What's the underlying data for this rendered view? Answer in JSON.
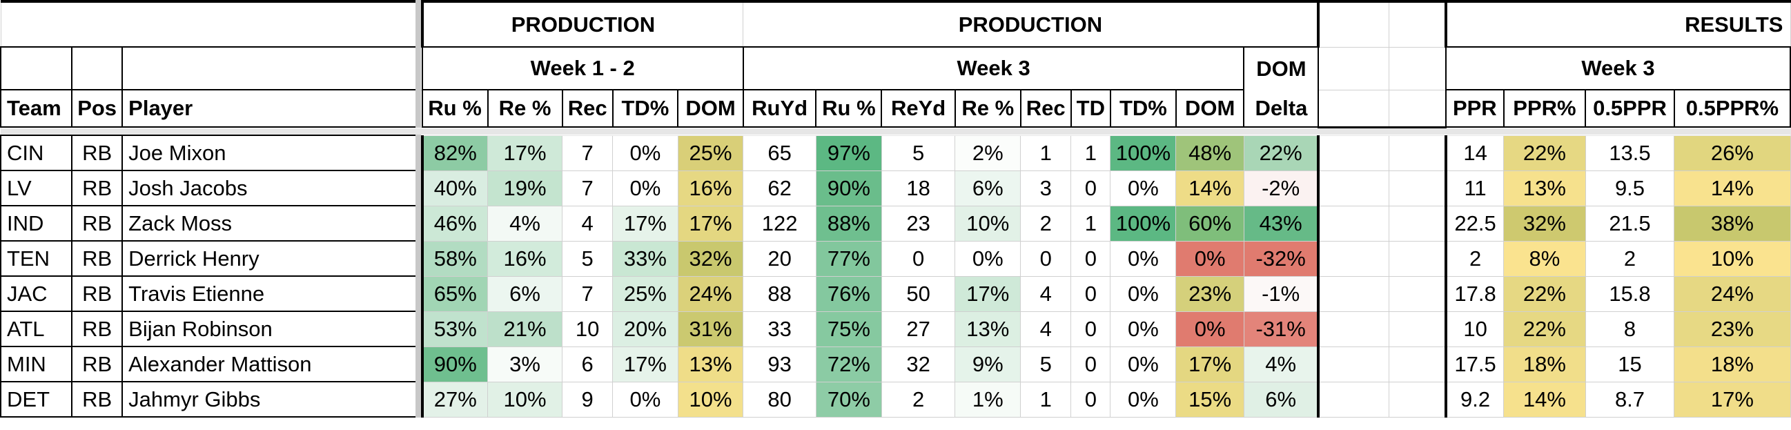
{
  "headers": {
    "production1": "PRODUCTION",
    "production2": "PRODUCTION",
    "results": "RESULTS",
    "week12": "Week 1 - 2",
    "week3a": "Week 3",
    "dom": "DOM",
    "week3b": "Week 3"
  },
  "columns": {
    "team": "Team",
    "pos": "Pos",
    "player": "Player",
    "ru_pct_w12": "Ru %",
    "re_pct_w12": "Re %",
    "rec_w12": "Rec",
    "td_pct_w12": "TD%",
    "dom_w12": "DOM",
    "ruyd": "RuYd",
    "ru_pct_w3": "Ru %",
    "reyd": "ReYd",
    "re_pct_w3": "Re %",
    "rec_w3": "Rec",
    "td": "TD",
    "td_pct_w3": "TD%",
    "dom_w3": "DOM",
    "delta": "Delta",
    "ppr": "PPR",
    "ppr_pct": "PPR%",
    "half_ppr": "0.5PPR",
    "half_ppr_pct": "0.5PPR%"
  },
  "rows": [
    {
      "team": "CIN",
      "pos": "RB",
      "player": "Joe Mixon",
      "ru12": "82%",
      "re12": "17%",
      "rec12": "7",
      "td12": "0%",
      "dom12": "25%",
      "ruyd": "65",
      "ru3": "97%",
      "reyd": "5",
      "re3": "2%",
      "rec3": "1",
      "td": "1",
      "td3": "100%",
      "dom3": "48%",
      "delta": "22%",
      "ppr": "14",
      "pprpct": "22%",
      "hppr": "13.5",
      "hpprpct": "26%"
    },
    {
      "team": "LV",
      "pos": "RB",
      "player": "Josh Jacobs",
      "ru12": "40%",
      "re12": "19%",
      "rec12": "7",
      "td12": "0%",
      "dom12": "16%",
      "ruyd": "62",
      "ru3": "90%",
      "reyd": "18",
      "re3": "6%",
      "rec3": "3",
      "td": "0",
      "td3": "0%",
      "dom3": "14%",
      "delta": "-2%",
      "ppr": "11",
      "pprpct": "13%",
      "hppr": "9.5",
      "hpprpct": "14%"
    },
    {
      "team": "IND",
      "pos": "RB",
      "player": "Zack Moss",
      "ru12": "46%",
      "re12": "4%",
      "rec12": "4",
      "td12": "17%",
      "dom12": "17%",
      "ruyd": "122",
      "ru3": "88%",
      "reyd": "23",
      "re3": "10%",
      "rec3": "2",
      "td": "1",
      "td3": "100%",
      "dom3": "60%",
      "delta": "43%",
      "ppr": "22.5",
      "pprpct": "32%",
      "hppr": "21.5",
      "hpprpct": "38%"
    },
    {
      "team": "TEN",
      "pos": "RB",
      "player": "Derrick Henry",
      "ru12": "58%",
      "re12": "16%",
      "rec12": "5",
      "td12": "33%",
      "dom12": "32%",
      "ruyd": "20",
      "ru3": "77%",
      "reyd": "0",
      "re3": "0%",
      "rec3": "0",
      "td": "0",
      "td3": "0%",
      "dom3": "0%",
      "delta": "-32%",
      "ppr": "2",
      "pprpct": "8%",
      "hppr": "2",
      "hpprpct": "10%"
    },
    {
      "team": "JAC",
      "pos": "RB",
      "player": "Travis Etienne",
      "ru12": "65%",
      "re12": "6%",
      "rec12": "7",
      "td12": "25%",
      "dom12": "24%",
      "ruyd": "88",
      "ru3": "76%",
      "reyd": "50",
      "re3": "17%",
      "rec3": "4",
      "td": "0",
      "td3": "0%",
      "dom3": "23%",
      "delta": "-1%",
      "ppr": "17.8",
      "pprpct": "22%",
      "hppr": "15.8",
      "hpprpct": "24%"
    },
    {
      "team": "ATL",
      "pos": "RB",
      "player": "Bijan Robinson",
      "ru12": "53%",
      "re12": "21%",
      "rec12": "10",
      "td12": "20%",
      "dom12": "31%",
      "ruyd": "33",
      "ru3": "75%",
      "reyd": "27",
      "re3": "13%",
      "rec3": "4",
      "td": "0",
      "td3": "0%",
      "dom3": "0%",
      "delta": "-31%",
      "ppr": "10",
      "pprpct": "22%",
      "hppr": "8",
      "hpprpct": "23%"
    },
    {
      "team": "MIN",
      "pos": "RB",
      "player": "Alexander Mattison",
      "ru12": "90%",
      "re12": "3%",
      "rec12": "6",
      "td12": "17%",
      "dom12": "13%",
      "ruyd": "93",
      "ru3": "72%",
      "reyd": "32",
      "re3": "9%",
      "rec3": "5",
      "td": "0",
      "td3": "0%",
      "dom3": "17%",
      "delta": "4%",
      "ppr": "17.5",
      "pprpct": "18%",
      "hppr": "15",
      "hpprpct": "18%"
    },
    {
      "team": "DET",
      "pos": "RB",
      "player": "Jahmyr Gibbs",
      "ru12": "27%",
      "re12": "10%",
      "rec12": "9",
      "td12": "0%",
      "dom12": "10%",
      "ruyd": "80",
      "ru3": "70%",
      "reyd": "2",
      "re3": "1%",
      "rec3": "1",
      "td": "0",
      "td3": "0%",
      "dom3": "15%",
      "delta": "6%",
      "ppr": "9.2",
      "pprpct": "14%",
      "hppr": "8.7",
      "hpprpct": "17%"
    }
  ],
  "colors": {
    "ru12": [
      "#8dcba4",
      "#d9ede1",
      "#cce8d6",
      "#b2dcc2",
      "#a1d5b4",
      "#c0e2cd",
      "#6fbf8f",
      "#e3f1e8"
    ],
    "re12": [
      "#cfe9d8",
      "#c4e4cf",
      "#f3f9f5",
      "#d2ebdb",
      "#ecf6f0",
      "#bde0ca",
      "#f7fbf8",
      "#e1f1e6"
    ],
    "td12": [
      "#ffffff",
      "#ffffff",
      "#e6f3ea",
      "#c9e7d3",
      "#d7edde",
      "#dcefe3",
      "#e6f3ea",
      "#ffffff"
    ],
    "dom12": [
      "#d9cf78",
      "#e6d883",
      "#e4d781",
      "#c9c86e",
      "#dbd17a",
      "#cbc970",
      "#efdd88",
      "#f3e08c"
    ],
    "ru3": [
      "#5cb883",
      "#6abd8b",
      "#6fbf8f",
      "#82c79d",
      "#84c89f",
      "#86c9a0",
      "#8bcba4",
      "#8ecca6"
    ],
    "re3": [
      "#fbfdfb",
      "#ecf6f0",
      "#e2f1e7",
      "#ffffff",
      "#cfe9d8",
      "#dcefe2",
      "#e5f3ea",
      "#f6fbf7"
    ],
    "td3": [
      "#5cb883",
      "#ffffff",
      "#5cb883",
      "#ffffff",
      "#ffffff",
      "#ffffff",
      "#ffffff",
      "#ffffff"
    ],
    "dom3": [
      "#9fc47a",
      "#eedc87",
      "#7fbe7b",
      "#e07b6f",
      "#d5d07b",
      "#e07b6f",
      "#e4d781",
      "#ebdb85"
    ],
    "delta": [
      "#a9d6b6",
      "#fbf2f1",
      "#66ba87",
      "#e07b6f",
      "#fcf8f7",
      "#e3847a",
      "#e8f4ec",
      "#e0f0e5"
    ],
    "pprpct": [
      "#e6d883",
      "#f6e18d",
      "#cec96f",
      "#fae38f",
      "#e6d883",
      "#e6d883",
      "#f1de8a",
      "#f6e18d"
    ],
    "hpprpct": [
      "#e1d67f",
      "#f8e28e",
      "#c8c86e",
      "#fae38f",
      "#e6d883",
      "#e7d984",
      "#f3df8b",
      "#f0dd89"
    ]
  }
}
